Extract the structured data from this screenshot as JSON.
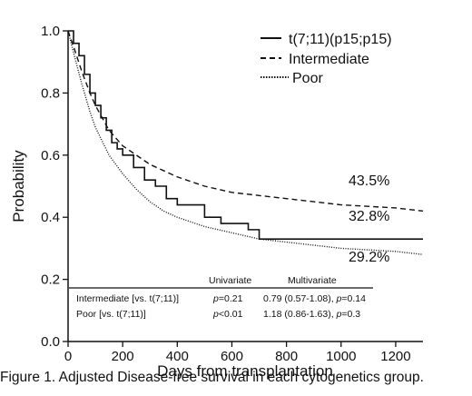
{
  "caption": "Figure 1.  Adjusted Disease-free survival in each cytogenetics group.",
  "chart_data": {
    "type": "line",
    "xlabel": "Days from transplantation",
    "ylabel": "Probability",
    "xlim": [
      0,
      1300
    ],
    "ylim": [
      0,
      1.0
    ],
    "x_ticks": [
      0,
      200,
      400,
      600,
      800,
      1000,
      1200
    ],
    "y_ticks": [
      0.0,
      0.2,
      0.4,
      0.6,
      0.8,
      1.0
    ],
    "y_tick_labels": [
      "0.0",
      "0.2",
      "0.4",
      "0.6",
      "0.8",
      "1.0"
    ],
    "grid": false,
    "legend_position": "top-right",
    "series": [
      {
        "name": "t(7;11)(p15;p15)",
        "style": "solid",
        "step": true,
        "end_label": "32.8%",
        "points": [
          [
            0,
            1.0
          ],
          [
            20,
            0.96
          ],
          [
            40,
            0.92
          ],
          [
            60,
            0.86
          ],
          [
            80,
            0.8
          ],
          [
            100,
            0.76
          ],
          [
            120,
            0.72
          ],
          [
            140,
            0.68
          ],
          [
            160,
            0.64
          ],
          [
            180,
            0.62
          ],
          [
            200,
            0.6
          ],
          [
            240,
            0.56
          ],
          [
            280,
            0.52
          ],
          [
            320,
            0.5
          ],
          [
            360,
            0.46
          ],
          [
            400,
            0.44
          ],
          [
            450,
            0.44
          ],
          [
            500,
            0.4
          ],
          [
            560,
            0.38
          ],
          [
            620,
            0.38
          ],
          [
            660,
            0.36
          ],
          [
            700,
            0.33
          ],
          [
            800,
            0.33
          ],
          [
            1300,
            0.33
          ]
        ]
      },
      {
        "name": "Intermediate",
        "style": "dashed",
        "step": false,
        "end_label": "43.5%",
        "points": [
          [
            0,
            1.0
          ],
          [
            20,
            0.95
          ],
          [
            50,
            0.87
          ],
          [
            80,
            0.8
          ],
          [
            100,
            0.76
          ],
          [
            150,
            0.68
          ],
          [
            200,
            0.63
          ],
          [
            250,
            0.6
          ],
          [
            300,
            0.57
          ],
          [
            400,
            0.53
          ],
          [
            500,
            0.5
          ],
          [
            600,
            0.48
          ],
          [
            700,
            0.47
          ],
          [
            800,
            0.46
          ],
          [
            900,
            0.45
          ],
          [
            1000,
            0.44
          ],
          [
            1100,
            0.435
          ],
          [
            1200,
            0.43
          ],
          [
            1300,
            0.42
          ]
        ]
      },
      {
        "name": "Poor",
        "style": "dotted",
        "step": false,
        "end_label": "29.2%",
        "points": [
          [
            0,
            1.0
          ],
          [
            20,
            0.93
          ],
          [
            50,
            0.83
          ],
          [
            80,
            0.74
          ],
          [
            100,
            0.69
          ],
          [
            150,
            0.6
          ],
          [
            200,
            0.54
          ],
          [
            250,
            0.49
          ],
          [
            300,
            0.45
          ],
          [
            350,
            0.42
          ],
          [
            400,
            0.4
          ],
          [
            500,
            0.37
          ],
          [
            600,
            0.35
          ],
          [
            700,
            0.33
          ],
          [
            800,
            0.32
          ],
          [
            900,
            0.31
          ],
          [
            1000,
            0.3
          ],
          [
            1100,
            0.295
          ],
          [
            1200,
            0.29
          ],
          [
            1300,
            0.28
          ]
        ]
      }
    ],
    "table": {
      "headers": [
        "",
        "Univariate",
        "Multivariate"
      ],
      "rows": [
        {
          "label": "Intermediate [vs. t(7;11)]",
          "p_prefix": "p",
          "univariate": "=0.21",
          "multivariate_pre": "0.79 (0.57-1.08), ",
          "multivariate_p": "p",
          "multivariate_post": "=0.14"
        },
        {
          "label": "Poor [vs. t(7;11)]",
          "p_prefix": "p",
          "univariate": "<0.01",
          "multivariate_pre": "1.18 (0.86-1.63), ",
          "multivariate_p": "p",
          "multivariate_post": "=0.3"
        }
      ]
    }
  }
}
